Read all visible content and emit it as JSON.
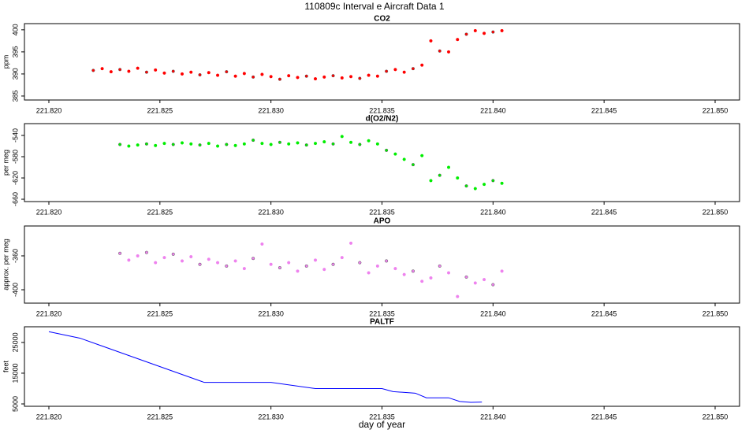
{
  "title": "110809c   Interval e Aircraft Data 1",
  "chart_data": [
    {
      "type": "scatter",
      "title": "CO2",
      "ylabel": "ppm",
      "color": "#ff0000",
      "xlim": [
        221.8189,
        221.8511
      ],
      "xticks": [
        {
          "value": 221.82,
          "label": "221.820"
        },
        221.825,
        {
          "value": 221.83,
          "label": "221.830"
        },
        221.835,
        {
          "value": 221.84,
          "label": "221.840"
        },
        221.845,
        {
          "value": 221.85,
          "label": "221.850"
        }
      ],
      "ylim": [
        384.1,
        401.4
      ],
      "yticks": [
        385,
        390,
        395,
        400
      ],
      "x": [
        221.822,
        221.8224,
        221.8228,
        221.8232,
        221.8236,
        221.824,
        221.8244,
        221.8248,
        221.8252,
        221.8256,
        221.826,
        221.8264,
        221.8268,
        221.8272,
        221.8276,
        221.828,
        221.8284,
        221.8288,
        221.8292,
        221.8296,
        221.83,
        221.8304,
        221.8308,
        221.8312,
        221.8316,
        221.832,
        221.8324,
        221.8328,
        221.8332,
        221.8336,
        221.834,
        221.8344,
        221.8348,
        221.8352,
        221.8356,
        221.836,
        221.8364,
        221.8368,
        221.8372,
        221.8376,
        221.838,
        221.8384,
        221.8388,
        221.8392,
        221.8396,
        221.84,
        221.8404
      ],
      "values": [
        390.8,
        391.2,
        390.5,
        391.0,
        390.6,
        391.3,
        390.4,
        390.9,
        390.2,
        390.6,
        390.0,
        390.4,
        389.8,
        390.3,
        389.7,
        390.5,
        389.5,
        390.1,
        389.3,
        389.9,
        389.4,
        388.8,
        389.6,
        389.2,
        389.5,
        388.9,
        389.3,
        389.6,
        389.1,
        389.4,
        389.0,
        389.7,
        389.5,
        390.6,
        391.0,
        390.4,
        391.2,
        392.0,
        397.5,
        395.2,
        395.0,
        397.8,
        399.0,
        399.8,
        399.2,
        399.5,
        399.8
      ]
    },
    {
      "type": "scatter",
      "title": "d(O2/N2)",
      "ylabel": "per meg",
      "color": "#00ee00",
      "xlim": [
        221.8189,
        221.8511
      ],
      "xticks": [
        {
          "value": 221.82,
          "label": "221.820"
        },
        221.825,
        {
          "value": 221.83,
          "label": "221.830"
        },
        221.835,
        {
          "value": 221.84,
          "label": "221.840"
        },
        221.845,
        {
          "value": 221.85,
          "label": "221.850"
        }
      ],
      "ylim": [
        -664.4,
        -517.8
      ],
      "yticks": [
        -540,
        -580,
        -620,
        -660
      ],
      "x": [
        221.8232,
        221.8236,
        221.824,
        221.8244,
        221.8248,
        221.8252,
        221.8256,
        221.826,
        221.8264,
        221.8268,
        221.8272,
        221.8276,
        221.828,
        221.8284,
        221.8288,
        221.8292,
        221.8296,
        221.83,
        221.8304,
        221.8308,
        221.8312,
        221.8316,
        221.832,
        221.8324,
        221.8328,
        221.8332,
        221.8336,
        221.834,
        221.8344,
        221.8348,
        221.8352,
        221.8356,
        221.836,
        221.8364,
        221.8368,
        221.8372,
        221.8376,
        221.838,
        221.8384,
        221.8388,
        221.8392,
        221.8396,
        221.84,
        221.8404
      ],
      "values": [
        -557,
        -560,
        -558,
        -556,
        -559,
        -555,
        -557,
        -554,
        -556,
        -558,
        -555,
        -560,
        -557,
        -559,
        -556,
        -549,
        -555,
        -557,
        -553,
        -556,
        -554,
        -558,
        -555,
        -552,
        -556,
        -542,
        -553,
        -557,
        -550,
        -556,
        -568,
        -575,
        -585,
        -595,
        -578,
        -625,
        -615,
        -600,
        -620,
        -635,
        -640,
        -632,
        -625,
        -630
      ]
    },
    {
      "type": "scatter",
      "title": "APO",
      "ylabel": "approx. per meg",
      "color": "#ee82ee",
      "xlim": [
        221.8189,
        221.8511
      ],
      "xticks": [
        {
          "value": 221.82,
          "label": "221.820"
        },
        221.825,
        {
          "value": 221.83,
          "label": "221.830"
        },
        221.835,
        {
          "value": 221.84,
          "label": "221.840"
        },
        221.845,
        {
          "value": 221.85,
          "label": "221.850"
        }
      ],
      "ylim": [
        -415.8,
        -324.7
      ],
      "yticks": [
        -360,
        -400
      ],
      "x": [
        221.8232,
        221.8236,
        221.824,
        221.8244,
        221.8248,
        221.8252,
        221.8256,
        221.826,
        221.8264,
        221.8268,
        221.8272,
        221.8276,
        221.828,
        221.8284,
        221.8288,
        221.8292,
        221.8296,
        221.83,
        221.8304,
        221.8308,
        221.8312,
        221.8316,
        221.832,
        221.8324,
        221.8328,
        221.8332,
        221.8336,
        221.834,
        221.8344,
        221.8348,
        221.8352,
        221.8356,
        221.836,
        221.8364,
        221.8368,
        221.8372,
        221.8376,
        221.838,
        221.8384,
        221.8388,
        221.8392,
        221.8396,
        221.84,
        221.8404
      ],
      "values": [
        -357,
        -365,
        -360,
        -356,
        -368,
        -362,
        -358,
        -366,
        -361,
        -370,
        -364,
        -368,
        -372,
        -366,
        -375,
        -363,
        -346,
        -370,
        -374,
        -368,
        -378,
        -372,
        -365,
        -376,
        -370,
        -362,
        -345,
        -368,
        -380,
        -372,
        -366,
        -375,
        -382,
        -378,
        -390,
        -386,
        -372,
        -380,
        -408,
        -385,
        -392,
        -388,
        -394,
        -378
      ]
    },
    {
      "type": "line",
      "title": "PALTF",
      "ylabel": "feet",
      "xlabel": "day of year",
      "color": "#0000ff",
      "xlim": [
        221.8189,
        221.8511
      ],
      "xticks": [
        {
          "value": 221.82,
          "label": "221.820"
        },
        221.825,
        {
          "value": 221.83,
          "label": "221.830"
        },
        221.835,
        {
          "value": 221.84,
          "label": "221.840"
        },
        221.845,
        {
          "value": 221.85,
          "label": "221.850"
        }
      ],
      "ylim": [
        4230,
        30100
      ],
      "yticks": [
        5000,
        15000,
        25000
      ],
      "x": [
        221.82,
        221.8214,
        221.827,
        221.83,
        221.832,
        221.835,
        221.8355,
        221.8365,
        221.837,
        221.838,
        221.8385,
        221.839,
        221.8395
      ],
      "values": [
        28500,
        26400,
        12000,
        12000,
        10000,
        10000,
        9000,
        8500,
        7000,
        7000,
        5800,
        5500,
        5600
      ]
    }
  ]
}
